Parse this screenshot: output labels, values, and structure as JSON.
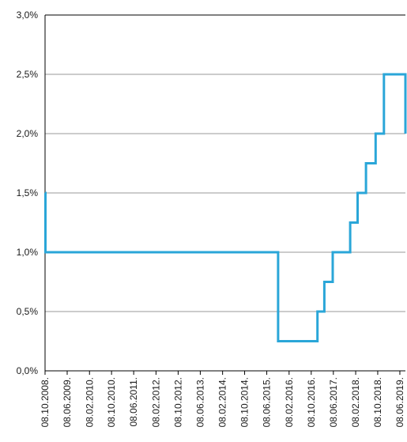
{
  "chart_data": {
    "type": "line",
    "step": true,
    "grid": true,
    "line_color": "#2aa6d8",
    "grid_color": "#9a9a9a",
    "y_ticks": [
      {
        "value": 0.0,
        "label": "0,0%"
      },
      {
        "value": 0.5,
        "label": "0,5%"
      },
      {
        "value": 1.0,
        "label": "1,0%"
      },
      {
        "value": 1.5,
        "label": "1,5%"
      },
      {
        "value": 2.0,
        "label": "2,0%"
      },
      {
        "value": 2.5,
        "label": "2,5%"
      },
      {
        "value": 3.0,
        "label": "3,0%"
      }
    ],
    "ylim": [
      0,
      3
    ],
    "x_ticks": [
      "08.10.2008.",
      "08.06.2009.",
      "08.02.2010.",
      "08.10.2010.",
      "08.06.2011.",
      "08.02.2012.",
      "08.10.2012.",
      "08.06.2013.",
      "08.02.2014.",
      "08.10.2014.",
      "08.06.2015.",
      "08.02.2016.",
      "08.10.2016.",
      "08.06.2017.",
      "08.02.2018.",
      "08.10.2018.",
      "08.06.2019."
    ],
    "xlim": [
      "2008-10-08",
      "2019-08-08"
    ],
    "series": [
      {
        "values": [
          {
            "date": "2008-10-08",
            "value": 1.5
          },
          {
            "date": "2008-10-12",
            "value": 1.0
          },
          {
            "date": "2015-10-10",
            "value": 0.25
          },
          {
            "date": "2016-12-15",
            "value": 0.5
          },
          {
            "date": "2017-03-01",
            "value": 0.75
          },
          {
            "date": "2017-06-01",
            "value": 1.0
          },
          {
            "date": "2017-12-10",
            "value": 1.25
          },
          {
            "date": "2018-03-01",
            "value": 1.5
          },
          {
            "date": "2018-06-01",
            "value": 1.75
          },
          {
            "date": "2018-09-15",
            "value": 2.0
          },
          {
            "date": "2018-12-15",
            "value": 2.5
          },
          {
            "date": "2019-08-08",
            "value": 2.0
          }
        ]
      }
    ]
  }
}
